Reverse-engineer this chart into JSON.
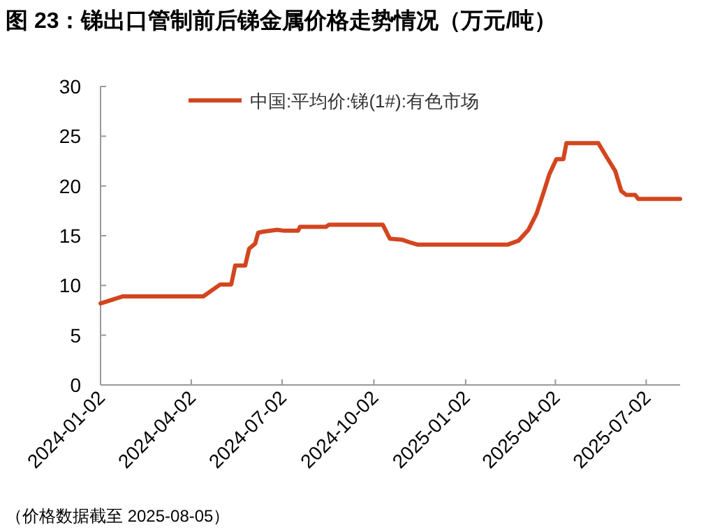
{
  "chart_data": {
    "type": "line",
    "title": "图 23：锑出口管制前后锑金属价格走势情况（万元/吨）",
    "annotations": [
      "（价格数据截至 2025-08-05）"
    ],
    "x": [
      "2024-01-02",
      "2024-01-24",
      "2024-04-14",
      "2024-05-01",
      "2024-05-12",
      "2024-05-16",
      "2024-05-26",
      "2024-05-30",
      "2024-06-05",
      "2024-06-08",
      "2024-06-13",
      "2024-06-27",
      "2024-07-04",
      "2024-07-18",
      "2024-07-20",
      "2024-08-15",
      "2024-08-18",
      "2024-10-11",
      "2024-10-18",
      "2024-10-30",
      "2024-11-08",
      "2024-11-15",
      "2025-02-13",
      "2025-02-24",
      "2025-03-06",
      "2025-03-14",
      "2025-03-21",
      "2025-03-27",
      "2025-04-03",
      "2025-04-10",
      "2025-04-13",
      "2025-05-15",
      "2025-05-24",
      "2025-06-01",
      "2025-06-07",
      "2025-06-12",
      "2025-06-21",
      "2025-06-24",
      "2025-08-05"
    ],
    "series": [
      {
        "name": "中国:平均价:锑(1#):有色市场",
        "color": "#d2461f",
        "values": [
          8.2,
          8.9,
          8.9,
          10.1,
          10.1,
          12.0,
          12.0,
          13.7,
          14.2,
          15.3,
          15.4,
          15.6,
          15.5,
          15.5,
          15.9,
          15.9,
          16.1,
          16.1,
          14.7,
          14.6,
          14.3,
          14.1,
          14.1,
          14.5,
          15.6,
          17.2,
          19.3,
          21.2,
          22.7,
          22.7,
          24.3,
          24.3,
          22.8,
          21.5,
          19.5,
          19.1,
          19.1,
          18.7,
          18.7
        ]
      }
    ],
    "xlim": [
      "2024-01-02",
      "2025-08-05"
    ],
    "xticks": [
      "2024-01-02",
      "2024-04-02",
      "2024-07-02",
      "2024-10-02",
      "2025-01-02",
      "2025-04-02",
      "2025-07-02"
    ],
    "ylim": [
      0,
      30
    ],
    "yticks": [
      0,
      5,
      10,
      15,
      20,
      25,
      30
    ],
    "legend": "top",
    "grid": false,
    "marker": "none",
    "line_style": "solid"
  }
}
